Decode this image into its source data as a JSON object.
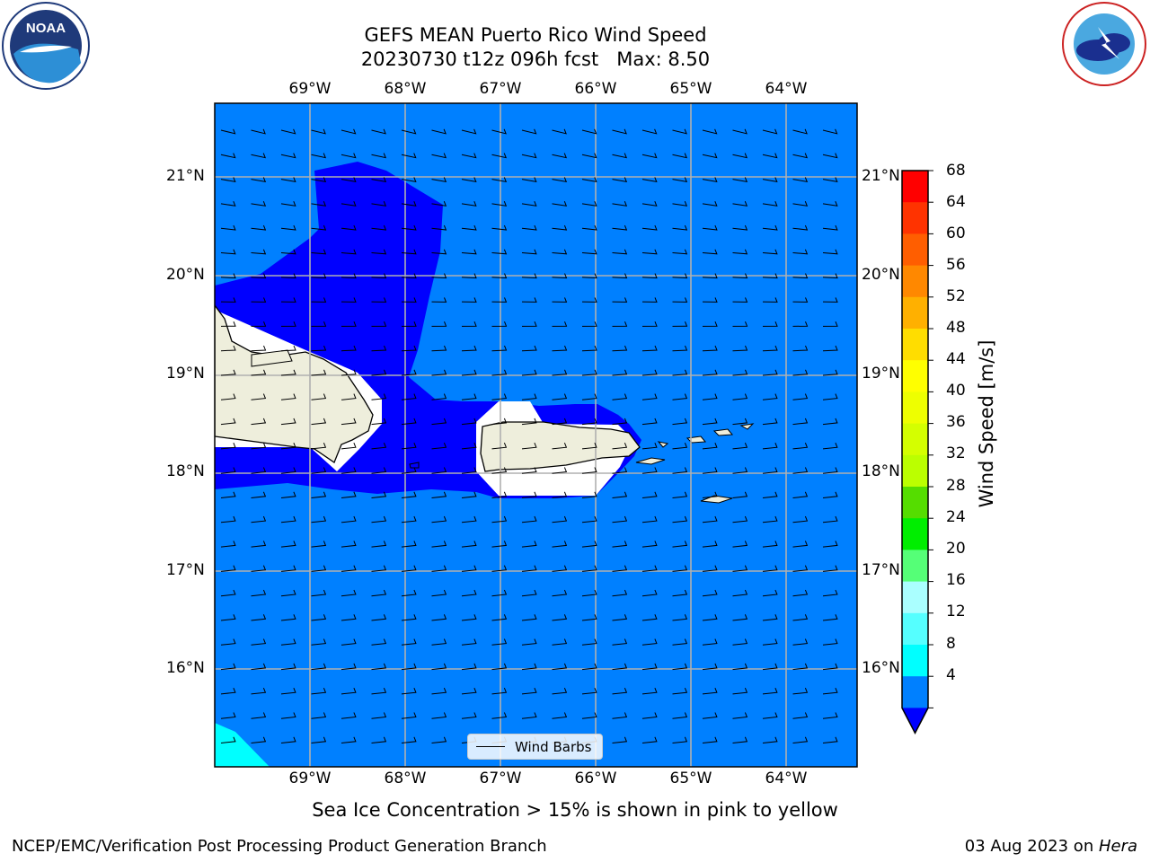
{
  "title": {
    "line1": "GEFS MEAN Puerto Rico Wind Speed",
    "line2": "20230730 t12z 096h fcst   Max: 8.50"
  },
  "logos": {
    "left": {
      "name": "NOAA",
      "text": "NOAA",
      "ring_text": "NATIONAL OCEANIC AND ATMOSPHERIC ADMINISTRATION · U.S. DEPARTMENT OF COMMERCE"
    },
    "right": {
      "name": "National Weather Service",
      "ring_text": "NATIONAL WEATHER SERVICE"
    }
  },
  "map": {
    "lon_labels": [
      "69°W",
      "68°W",
      "67°W",
      "66°W",
      "65°W",
      "64°W"
    ],
    "lat_labels": [
      "21°N",
      "20°N",
      "19°N",
      "18°N",
      "17°N",
      "16°N"
    ],
    "colors": {
      "ocean_4_8": "#0080ff",
      "calm_lt_4": "#0000ff",
      "wind_8_12": "#00ffff",
      "land": "#eeeedc",
      "grid": "#b0b0b0"
    },
    "legend_label": "Wind Barbs"
  },
  "colorbar": {
    "label": "Wind Speed [m/s]",
    "ticks": [
      "68",
      "64",
      "60",
      "56",
      "52",
      "48",
      "44",
      "40",
      "36",
      "32",
      "28",
      "24",
      "20",
      "16",
      "12",
      "8",
      "4"
    ],
    "colors": [
      "#ff0000",
      "#ff3300",
      "#ff5e00",
      "#ff8800",
      "#ffb000",
      "#ffdd00",
      "#ffff00",
      "#eeff00",
      "#d4ff00",
      "#bbff00",
      "#55dd00",
      "#00ee00",
      "#55ff77",
      "#aaffff",
      "#55ffff",
      "#00ffff",
      "#0080ff"
    ],
    "extend_color": "#0000ff"
  },
  "footer": {
    "note": "Sea Ice Concentration > 15% is shown in pink to yellow",
    "left": "NCEP/EMC/Verification Post Processing Product Generation Branch",
    "date": "03 Aug 2023 on ",
    "machine": "Hera"
  }
}
